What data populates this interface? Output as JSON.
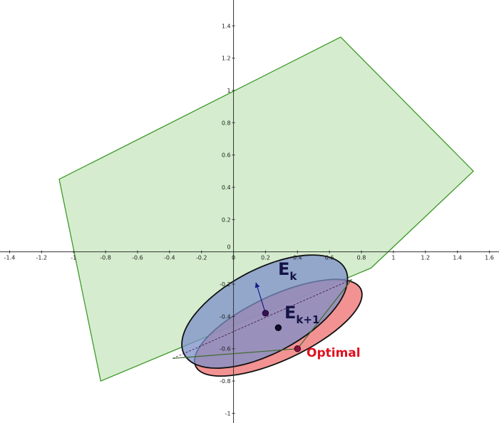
{
  "chart_data": {
    "type": "diagram",
    "xlim": [
      -1.46,
      1.66
    ],
    "ylim": [
      -1.06,
      1.56
    ],
    "x_ticks": [
      -1.4,
      -1.2,
      -1,
      -0.8,
      -0.6,
      -0.4,
      -0.2,
      0,
      0.2,
      0.4,
      0.6,
      0.8,
      1,
      1.2,
      1.4,
      1.6
    ],
    "y_ticks": [
      -1,
      -0.8,
      -0.6,
      -0.4,
      -0.2,
      0.2,
      0.4,
      0.6,
      0.8,
      1,
      1.2,
      1.4
    ],
    "origin_label": "0",
    "polygon": {
      "fill": "#d5edce",
      "stroke": "#3e9a2a",
      "points": [
        [
          -1.09,
          0.45
        ],
        [
          0.67,
          1.33
        ],
        [
          1.5,
          0.5
        ],
        [
          0.86,
          -0.1
        ],
        [
          -0.83,
          -0.8
        ]
      ]
    },
    "ellipse_ek1": {
      "label": "E",
      "subscript": "k+1",
      "center": [
        0.28,
        -0.47
      ],
      "rx": 0.57,
      "ry": 0.2,
      "angle_deg": 25,
      "fill": "#f07f7f",
      "stroke": "#111111"
    },
    "ellipse_ek": {
      "label": "E",
      "subscript": "k",
      "center": [
        0.195,
        -0.37
      ],
      "rx": 0.57,
      "ry": 0.26,
      "angle_deg": 28,
      "fill": "#7b8fc8",
      "stroke": "#111111"
    },
    "center_point_ek": [
      0.2,
      -0.38
    ],
    "center_point_ek1": [
      0.28,
      -0.47
    ],
    "optimal_point": [
      0.4,
      -0.6
    ],
    "optimal_label": "Optimal",
    "optimal_color": "#e01020",
    "gradient_arrow": {
      "from": [
        0.2,
        -0.38
      ],
      "to": [
        0.14,
        -0.19
      ],
      "color": "#1a1a8a"
    },
    "dashed_chord": {
      "from": [
        -0.38,
        -0.66
      ],
      "to": [
        0.74,
        -0.17
      ]
    },
    "segment": {
      "from": [
        -0.38,
        -0.66
      ],
      "to": [
        0.4,
        -0.6
      ]
    },
    "segment2": {
      "from": [
        0.4,
        -0.6
      ],
      "to": [
        0.74,
        -0.17
      ]
    }
  }
}
